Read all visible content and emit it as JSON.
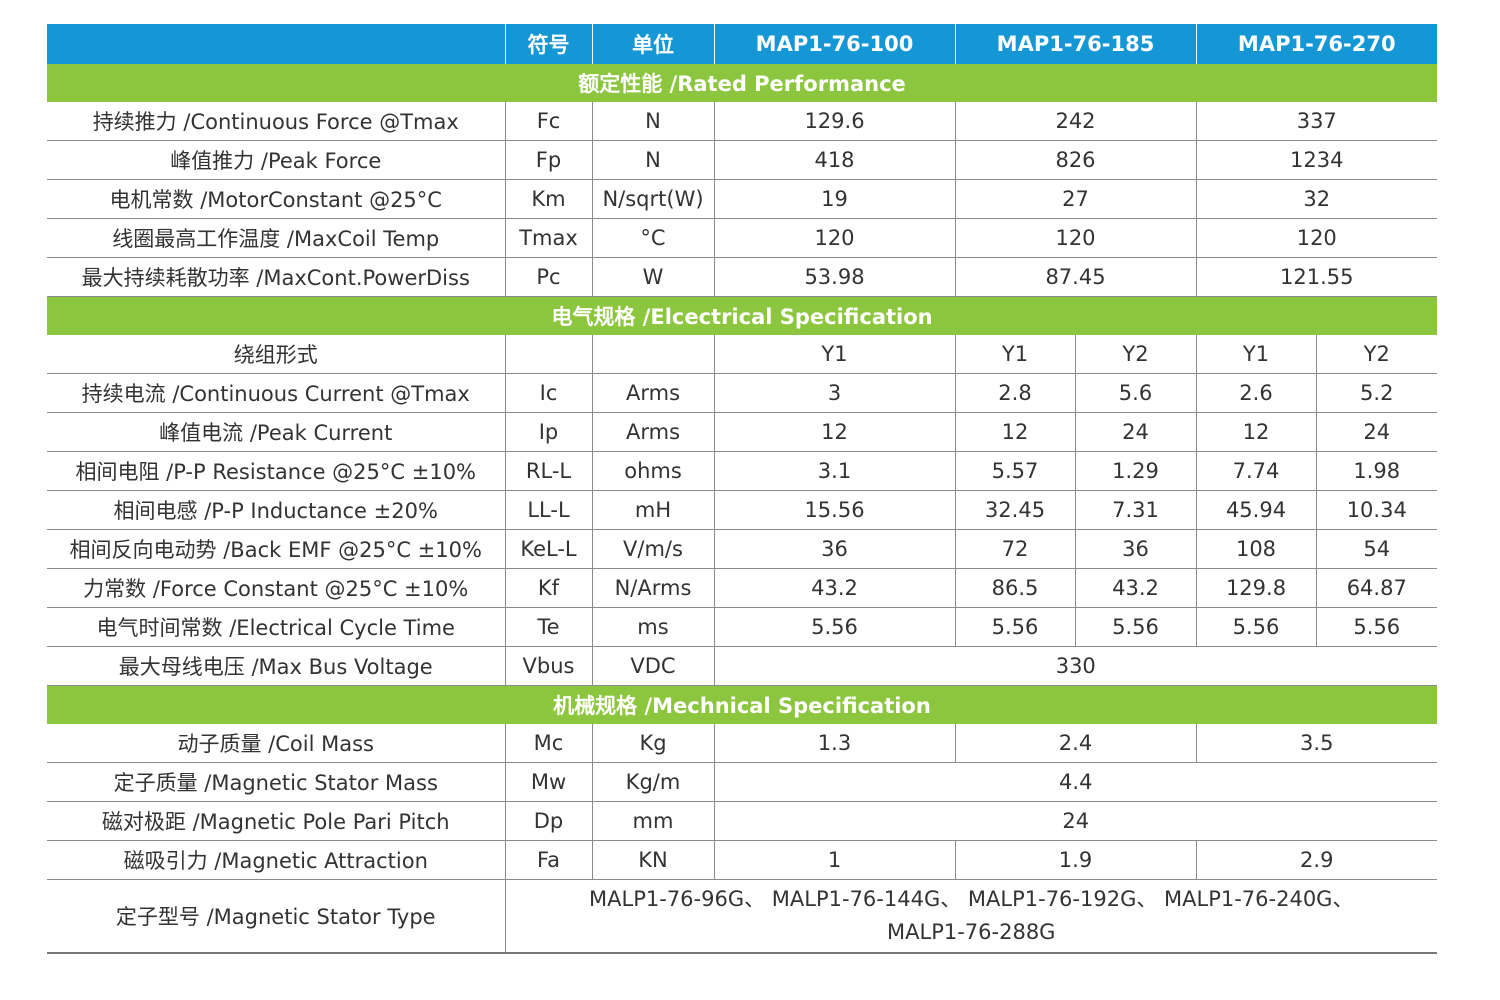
{
  "header": {
    "symbol": "符号",
    "unit": "单位",
    "models": [
      "MAP1-76-100",
      "MAP1-76-185",
      "MAP1-76-270"
    ]
  },
  "sections": {
    "rated": "额定性能 /Rated Performance",
    "electrical": "电气规格 /Elcectrical Specification",
    "mechanical": "机械规格 /Mechnical Specification"
  },
  "rated_rows": [
    {
      "name": "持续推力 /Continuous Force @Tmax",
      "symbol": "Fc",
      "unit": "N",
      "values": [
        "129.6",
        "242",
        "337"
      ]
    },
    {
      "name": "峰值推力 /Peak Force",
      "symbol": "Fp",
      "unit": "N",
      "values": [
        "418",
        "826",
        "1234"
      ]
    },
    {
      "name": "电机常数 /MotorConstant @25°C",
      "symbol": "Km",
      "unit": "N/sqrt(W)",
      "values": [
        "19",
        "27",
        "32"
      ]
    },
    {
      "name": "线圈最高工作温度 /MaxCoil Temp",
      "symbol": "Tmax",
      "unit": "°C",
      "values": [
        "120",
        "120",
        "120"
      ]
    },
    {
      "name": "最大持续耗散功率 /MaxCont.PowerDiss",
      "symbol": "Pc",
      "unit": "W",
      "values": [
        "53.98",
        "87.45",
        "121.55"
      ]
    }
  ],
  "winding": {
    "name": "绕组形式",
    "symbol": "",
    "unit": "",
    "values": [
      "Y1",
      "Y1",
      "Y2",
      "Y1",
      "Y2"
    ]
  },
  "electrical_rows": [
    {
      "name": "持续电流 /Continuous Current @Tmax",
      "symbol": "Ic",
      "unit": "Arms",
      "values": [
        "3",
        "2.8",
        "5.6",
        "2.6",
        "5.2"
      ]
    },
    {
      "name": "峰值电流 /Peak Current",
      "symbol": "Ip",
      "unit": "Arms",
      "values": [
        "12",
        "12",
        "24",
        "12",
        "24"
      ]
    },
    {
      "name": "相间电阻 /P-P Resistance @25°C ±10%",
      "symbol": "RL-L",
      "unit": "ohms",
      "values": [
        "3.1",
        "5.57",
        "1.29",
        "7.74",
        "1.98"
      ]
    },
    {
      "name": "相间电感 /P-P Inductance ±20%",
      "symbol": "LL-L",
      "unit": "mH",
      "values": [
        "15.56",
        "32.45",
        "7.31",
        "45.94",
        "10.34"
      ]
    },
    {
      "name": "相间反向电动势 /Back EMF @25°C ±10%",
      "symbol": "KeL-L",
      "unit": "V/m/s",
      "values": [
        "36",
        "72",
        "36",
        "108",
        "54"
      ]
    },
    {
      "name": "力常数 /Force Constant @25°C ±10%",
      "symbol": "Kf",
      "unit": "N/Arms",
      "values": [
        "43.2",
        "86.5",
        "43.2",
        "129.8",
        "64.87"
      ]
    },
    {
      "name": "电气时间常数 /Electrical Cycle Time",
      "symbol": "Te",
      "unit": "ms",
      "values": [
        "5.56",
        "5.56",
        "5.56",
        "5.56",
        "5.56"
      ]
    }
  ],
  "bus_voltage": {
    "name": "最大母线电压 /Max Bus Voltage",
    "symbol": "Vbus",
    "unit": "VDC",
    "value": "330"
  },
  "mech_rows": {
    "coil_mass": {
      "name": "动子质量 /Coil Mass",
      "symbol": "Mc",
      "unit": "Kg",
      "values": [
        "1.3",
        "2.4",
        "3.5"
      ]
    },
    "stator_mass": {
      "name": "定子质量 /Magnetic Stator Mass",
      "symbol": "Mw",
      "unit": "Kg/m",
      "value": "4.4"
    },
    "pole_pitch": {
      "name": "磁对极距 /Magnetic Pole Pari Pitch",
      "symbol": "Dp",
      "unit": "mm",
      "value": "24"
    },
    "attraction": {
      "name": "磁吸引力 /Magnetic Attraction",
      "symbol": "Fa",
      "unit": "KN",
      "values": [
        "1",
        "1.9",
        "2.9"
      ]
    }
  },
  "stator_type": {
    "name": "定子型号 /Magnetic Stator Type",
    "line1": "MALP1-76-96G、 MALP1-76-144G、 MALP1-76-192G、 MALP1-76-240G、",
    "line2": "MALP1-76-288G"
  }
}
